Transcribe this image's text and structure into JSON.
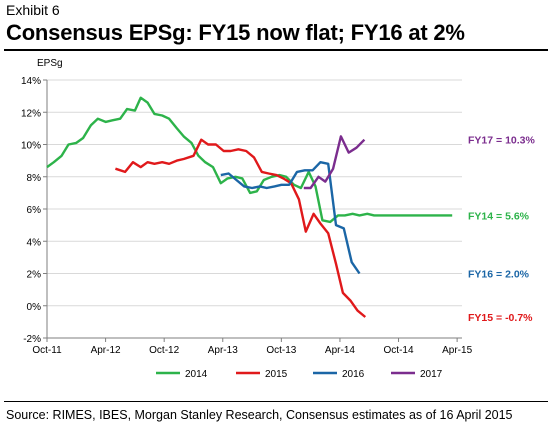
{
  "header": {
    "exhibit": "Exhibit 6",
    "title": "Consensus EPSg: FY15 now flat; FY16 at 2%"
  },
  "footer": {
    "source": "Source: RIMES, IBES, Morgan Stanley Research, Consensus estimates as of 16 April 2015"
  },
  "chart_data": {
    "type": "line",
    "ylabel": "EPSg",
    "ylim": [
      -2,
      14
    ],
    "yticks": [
      -2,
      0,
      2,
      4,
      6,
      8,
      10,
      12,
      14
    ],
    "ytick_labels": [
      "-2%",
      "0%",
      "2%",
      "4%",
      "6%",
      "8%",
      "10%",
      "12%",
      "14%"
    ],
    "xlim": [
      0,
      42.5
    ],
    "xtick_positions": [
      0,
      6,
      12,
      18,
      24,
      30,
      36,
      42
    ],
    "xtick_labels": [
      "Oct-11",
      "Apr-12",
      "Oct-12",
      "Apr-13",
      "Oct-13",
      "Apr-14",
      "Oct-14",
      "Apr-15"
    ],
    "grid": "horizontal",
    "legend_position": "bottom",
    "series": [
      {
        "name": "2014",
        "color": "#2db34a",
        "end_label": "FY14 = 5.6%",
        "points": [
          [
            0,
            8.6
          ],
          [
            0.7,
            8.9
          ],
          [
            1.5,
            9.3
          ],
          [
            2.2,
            10.0
          ],
          [
            3.0,
            10.1
          ],
          [
            3.7,
            10.4
          ],
          [
            4.5,
            11.2
          ],
          [
            5.2,
            11.6
          ],
          [
            6.0,
            11.4
          ],
          [
            6.7,
            11.5
          ],
          [
            7.5,
            11.6
          ],
          [
            8.2,
            12.2
          ],
          [
            9.0,
            12.1
          ],
          [
            9.6,
            12.9
          ],
          [
            10.3,
            12.6
          ],
          [
            11.0,
            11.9
          ],
          [
            11.8,
            11.8
          ],
          [
            12.5,
            11.6
          ],
          [
            13.3,
            11.0
          ],
          [
            14.0,
            10.5
          ],
          [
            14.8,
            10.1
          ],
          [
            15.5,
            9.3
          ],
          [
            16.2,
            8.9
          ],
          [
            17.0,
            8.6
          ],
          [
            17.8,
            7.6
          ],
          [
            18.5,
            7.9
          ],
          [
            19.3,
            8.0
          ],
          [
            20.0,
            7.9
          ],
          [
            20.8,
            7.0
          ],
          [
            21.5,
            7.1
          ],
          [
            22.2,
            7.8
          ],
          [
            23.0,
            8.0
          ],
          [
            23.8,
            8.1
          ],
          [
            24.5,
            8.0
          ],
          [
            25.3,
            7.5
          ],
          [
            26.0,
            7.3
          ],
          [
            26.8,
            8.3
          ],
          [
            27.5,
            7.4
          ],
          [
            28.2,
            5.3
          ],
          [
            29.0,
            5.2
          ],
          [
            29.8,
            5.6
          ],
          [
            30.5,
            5.6
          ],
          [
            31.3,
            5.7
          ],
          [
            32.0,
            5.6
          ],
          [
            32.8,
            5.7
          ],
          [
            33.5,
            5.6
          ],
          [
            34.2,
            5.6
          ],
          [
            41.5,
            5.6
          ]
        ]
      },
      {
        "name": "2015",
        "color": "#e0191b",
        "end_label": "FY15 = -0.7%",
        "points": [
          [
            7.0,
            8.5
          ],
          [
            8.0,
            8.3
          ],
          [
            8.8,
            8.9
          ],
          [
            9.6,
            8.6
          ],
          [
            10.3,
            8.9
          ],
          [
            11.0,
            8.8
          ],
          [
            11.8,
            8.9
          ],
          [
            12.5,
            8.8
          ],
          [
            13.3,
            9.0
          ],
          [
            14.0,
            9.1
          ],
          [
            15.0,
            9.3
          ],
          [
            15.8,
            10.3
          ],
          [
            16.5,
            10.0
          ],
          [
            17.3,
            10.0
          ],
          [
            18.1,
            9.6
          ],
          [
            18.8,
            9.6
          ],
          [
            19.6,
            9.7
          ],
          [
            20.4,
            9.6
          ],
          [
            21.2,
            9.2
          ],
          [
            22.0,
            8.3
          ],
          [
            22.7,
            8.2
          ],
          [
            23.5,
            8.1
          ],
          [
            24.2,
            7.9
          ],
          [
            25.0,
            7.6
          ],
          [
            25.8,
            6.6
          ],
          [
            26.5,
            4.6
          ],
          [
            27.3,
            5.7
          ],
          [
            28.0,
            5.1
          ],
          [
            28.8,
            4.5
          ],
          [
            29.6,
            2.6
          ],
          [
            30.3,
            0.8
          ],
          [
            31.1,
            0.3
          ],
          [
            31.8,
            -0.3
          ],
          [
            32.6,
            -0.7
          ]
        ]
      },
      {
        "name": "2016",
        "color": "#1b66a6",
        "end_label": "FY16 = 2.0%",
        "points": [
          [
            17.8,
            8.1
          ],
          [
            18.6,
            8.2
          ],
          [
            19.4,
            7.8
          ],
          [
            20.2,
            7.4
          ],
          [
            21.0,
            7.3
          ],
          [
            21.8,
            7.4
          ],
          [
            22.5,
            7.3
          ],
          [
            23.3,
            7.4
          ],
          [
            24.0,
            7.5
          ],
          [
            24.8,
            7.5
          ],
          [
            25.6,
            8.3
          ],
          [
            26.4,
            8.4
          ],
          [
            27.2,
            8.4
          ],
          [
            28.0,
            8.9
          ],
          [
            28.8,
            8.8
          ],
          [
            29.6,
            5.0
          ],
          [
            30.4,
            4.8
          ],
          [
            31.2,
            2.7
          ],
          [
            32.0,
            2.0
          ]
        ]
      },
      {
        "name": "2017",
        "color": "#7b2d8e",
        "end_label": "FY17 = 10.3%",
        "points": [
          [
            26.3,
            7.3
          ],
          [
            27.0,
            7.3
          ],
          [
            27.8,
            8.0
          ],
          [
            28.5,
            7.7
          ],
          [
            29.3,
            8.5
          ],
          [
            30.1,
            10.5
          ],
          [
            30.9,
            9.5
          ],
          [
            31.7,
            9.8
          ],
          [
            32.5,
            10.3
          ]
        ]
      }
    ]
  }
}
